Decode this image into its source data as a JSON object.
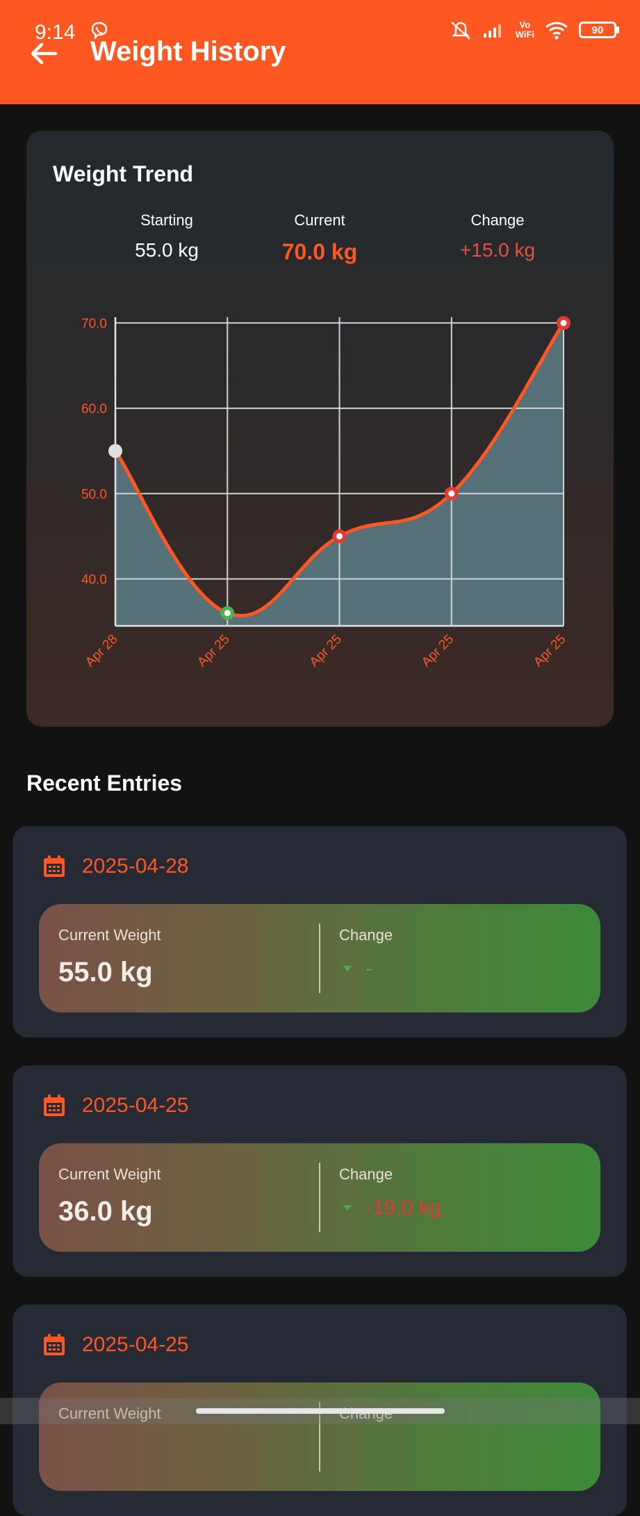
{
  "status_bar": {
    "time": "9:14",
    "battery": "90",
    "vowifi_top": "Vo",
    "vowifi_bottom": "WiFi"
  },
  "app_bar": {
    "title": "Weight History",
    "back_icon": "arrow-left-icon"
  },
  "trend_card": {
    "title": "Weight Trend",
    "starting_label": "Starting",
    "starting_value": "55.0 kg",
    "current_label": "Current",
    "current_value": "70.0 kg",
    "change_label": "Change",
    "change_value": "+15.0 kg"
  },
  "chart_data": {
    "type": "line",
    "x": [
      "Apr 28",
      "Apr 25",
      "Apr 25",
      "Apr 25",
      "Apr 25"
    ],
    "series": [
      {
        "values": [
          55.0,
          36.0,
          45.0,
          50.0,
          70.0
        ]
      }
    ],
    "y_ticks": [
      "70.0",
      "60.0",
      "50.0",
      "40.0"
    ],
    "ylim": [
      34.5,
      71.5
    ],
    "grid": true,
    "colors": {
      "line": "#ff5722",
      "fill": "#567077",
      "first_point": "#e0e0e0",
      "min_point": "#4caf50",
      "point": "#e53935",
      "tick": "#ff5722"
    }
  },
  "recent": {
    "title": "Recent Entries",
    "entries": [
      {
        "date": "2025-04-28",
        "weight_label": "Current Weight",
        "weight": "55.0 kg",
        "change_label": "Change",
        "change": "-",
        "change_color": "#4caf50"
      },
      {
        "date": "2025-04-25",
        "weight_label": "Current Weight",
        "weight": "36.0 kg",
        "change_label": "Change",
        "change": "-19.0 kg",
        "change_color": "#e53935"
      },
      {
        "date": "2025-04-25",
        "weight_label": "Current Weight",
        "weight": "",
        "change_label": "Change",
        "change": "",
        "change_color": "#4caf50"
      }
    ]
  },
  "colors": {
    "accent": "#ff5722",
    "background": "#121212",
    "card": "#262a35"
  }
}
